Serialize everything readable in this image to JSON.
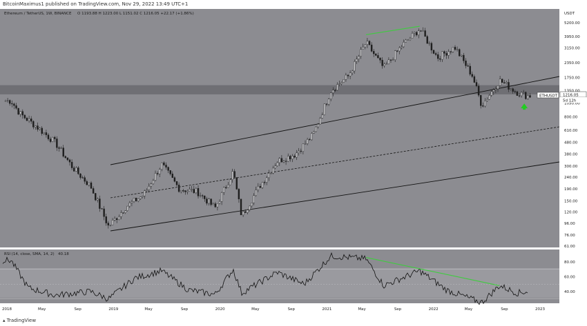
{
  "header": {
    "published": "BitcoinMaximus1 published on TradingView.com, Nov 29, 2022 13:49 UTC+1"
  },
  "symbol": {
    "name": "Ethereum / TetherUS, 1W, BINANCE",
    "ohlc": "O 1193.88 H 1223.00 L 1151.02 C 1216.05 +22.17 (+1.86%)",
    "ticker_tag": "ETHUSDT",
    "last_price": "1216.05",
    "countdown": "5d 12h"
  },
  "colors": {
    "background": "#8c8c91",
    "candle": "#1e1e1e",
    "resistance_band": "#6a6a6e",
    "divergence_line": "#3fcc3f",
    "arrow": "#22cc22",
    "channel_line": "#111111"
  },
  "footer": {
    "brand": "TradingView"
  },
  "chart_data": [
    {
      "type": "candlestick",
      "panel": "price",
      "axis_unit": "USDT",
      "y_scale": "log",
      "x_ticks": [
        "2018",
        "May",
        "Sep",
        "2019",
        "May",
        "Sep",
        "2020",
        "May",
        "Sep",
        "2021",
        "May",
        "Sep",
        "2022",
        "May",
        "Sep",
        "2023"
      ],
      "y_ticks": [
        "5200.00",
        "3950.00",
        "3150.00",
        "2350.00",
        "1750.00",
        "1350.00",
        "1050.00",
        "800.00",
        "610.00",
        "480.00",
        "380.00",
        "300.00",
        "240.00",
        "190.00",
        "150.00",
        "120.00",
        "96.00",
        "76.00",
        "61.00"
      ],
      "approx_weekly_closes": [
        {
          "date": "2018-01",
          "value": 1100
        },
        {
          "date": "2018-02",
          "value": 850
        },
        {
          "date": "2018-04",
          "value": 650
        },
        {
          "date": "2018-06",
          "value": 480
        },
        {
          "date": "2018-08",
          "value": 290
        },
        {
          "date": "2018-10",
          "value": 200
        },
        {
          "date": "2018-12",
          "value": 90
        },
        {
          "date": "2019-02",
          "value": 135
        },
        {
          "date": "2019-04",
          "value": 170
        },
        {
          "date": "2019-06",
          "value": 310
        },
        {
          "date": "2019-08",
          "value": 190
        },
        {
          "date": "2019-10",
          "value": 180
        },
        {
          "date": "2019-12",
          "value": 130
        },
        {
          "date": "2020-02",
          "value": 270
        },
        {
          "date": "2020-03",
          "value": 110
        },
        {
          "date": "2020-05",
          "value": 200
        },
        {
          "date": "2020-07",
          "value": 330
        },
        {
          "date": "2020-09",
          "value": 380
        },
        {
          "date": "2020-11",
          "value": 560
        },
        {
          "date": "2021-01",
          "value": 1350
        },
        {
          "date": "2021-03",
          "value": 1800
        },
        {
          "date": "2021-05",
          "value": 3500
        },
        {
          "date": "2021-07",
          "value": 2100
        },
        {
          "date": "2021-09",
          "value": 3300
        },
        {
          "date": "2021-11",
          "value": 4600
        },
        {
          "date": "2022-01",
          "value": 2600
        },
        {
          "date": "2022-03",
          "value": 3200
        },
        {
          "date": "2022-05",
          "value": 1800
        },
        {
          "date": "2022-06",
          "value": 1000
        },
        {
          "date": "2022-08",
          "value": 1650
        },
        {
          "date": "2022-10",
          "value": 1300
        },
        {
          "date": "2022-11",
          "value": 1216
        }
      ],
      "annotations": {
        "resistance_band": [
          1250,
          1500
        ],
        "channel": "ascending parallel channel with dashed midline",
        "price_divergence": {
          "from": {
            "date": "2021-05",
            "value": 4100
          },
          "to": {
            "date": "2021-11",
            "value": 4850
          }
        },
        "support_arrow": {
          "date": "2022-11",
          "value": 960
        }
      }
    },
    {
      "type": "line",
      "panel": "indicator",
      "label": "RSI (14, close, SMA, 14, 2)",
      "current_value": "40.18",
      "y_ticks": [
        "80.00",
        "60.00",
        "40.00"
      ],
      "band": [
        30,
        70
      ],
      "approx_values": [
        {
          "date": "2018-01",
          "value": 82
        },
        {
          "date": "2018-03",
          "value": 45
        },
        {
          "date": "2018-06",
          "value": 35
        },
        {
          "date": "2018-10",
          "value": 40
        },
        {
          "date": "2018-12",
          "value": 30
        },
        {
          "date": "2019-03",
          "value": 58
        },
        {
          "date": "2019-06",
          "value": 68
        },
        {
          "date": "2019-09",
          "value": 42
        },
        {
          "date": "2019-12",
          "value": 36
        },
        {
          "date": "2020-02",
          "value": 70
        },
        {
          "date": "2020-03",
          "value": 38
        },
        {
          "date": "2020-07",
          "value": 66
        },
        {
          "date": "2020-10",
          "value": 50
        },
        {
          "date": "2021-01",
          "value": 88
        },
        {
          "date": "2021-05",
          "value": 84
        },
        {
          "date": "2021-07",
          "value": 48
        },
        {
          "date": "2021-11",
          "value": 68
        },
        {
          "date": "2022-02",
          "value": 42
        },
        {
          "date": "2022-06",
          "value": 25
        },
        {
          "date": "2022-08",
          "value": 48
        },
        {
          "date": "2022-10",
          "value": 38
        },
        {
          "date": "2022-11",
          "value": 40
        }
      ],
      "divergence_line": {
        "from": {
          "date": "2021-05",
          "value": 86
        },
        "to": {
          "date": "2022-08",
          "value": 48
        }
      }
    }
  ]
}
